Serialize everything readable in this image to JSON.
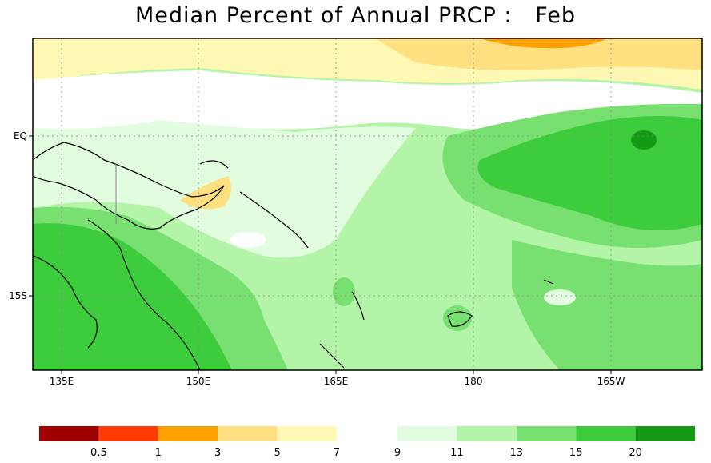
{
  "title": "Median Percent of Annual PRCP :   Feb",
  "map": {
    "lat_labels": [
      "EQ",
      "15S"
    ],
    "lon_labels": [
      "135E",
      "150E",
      "165E",
      "180",
      "165W"
    ],
    "grid": "dotted",
    "coastlines": true
  },
  "colorbar": {
    "dry": {
      "colors": [
        "#a00000",
        "#ff3c00",
        "#ffa000",
        "#ffe080",
        "#fff8b4"
      ],
      "labels": [
        "0.5",
        "1",
        "3",
        "5",
        "7"
      ]
    },
    "wet": {
      "colors": [
        "#e2fce0",
        "#b4f4a8",
        "#78e070",
        "#3ccc3c",
        "#149a14"
      ],
      "labels": [
        "9",
        "11",
        "13",
        "15",
        "20"
      ]
    }
  }
}
